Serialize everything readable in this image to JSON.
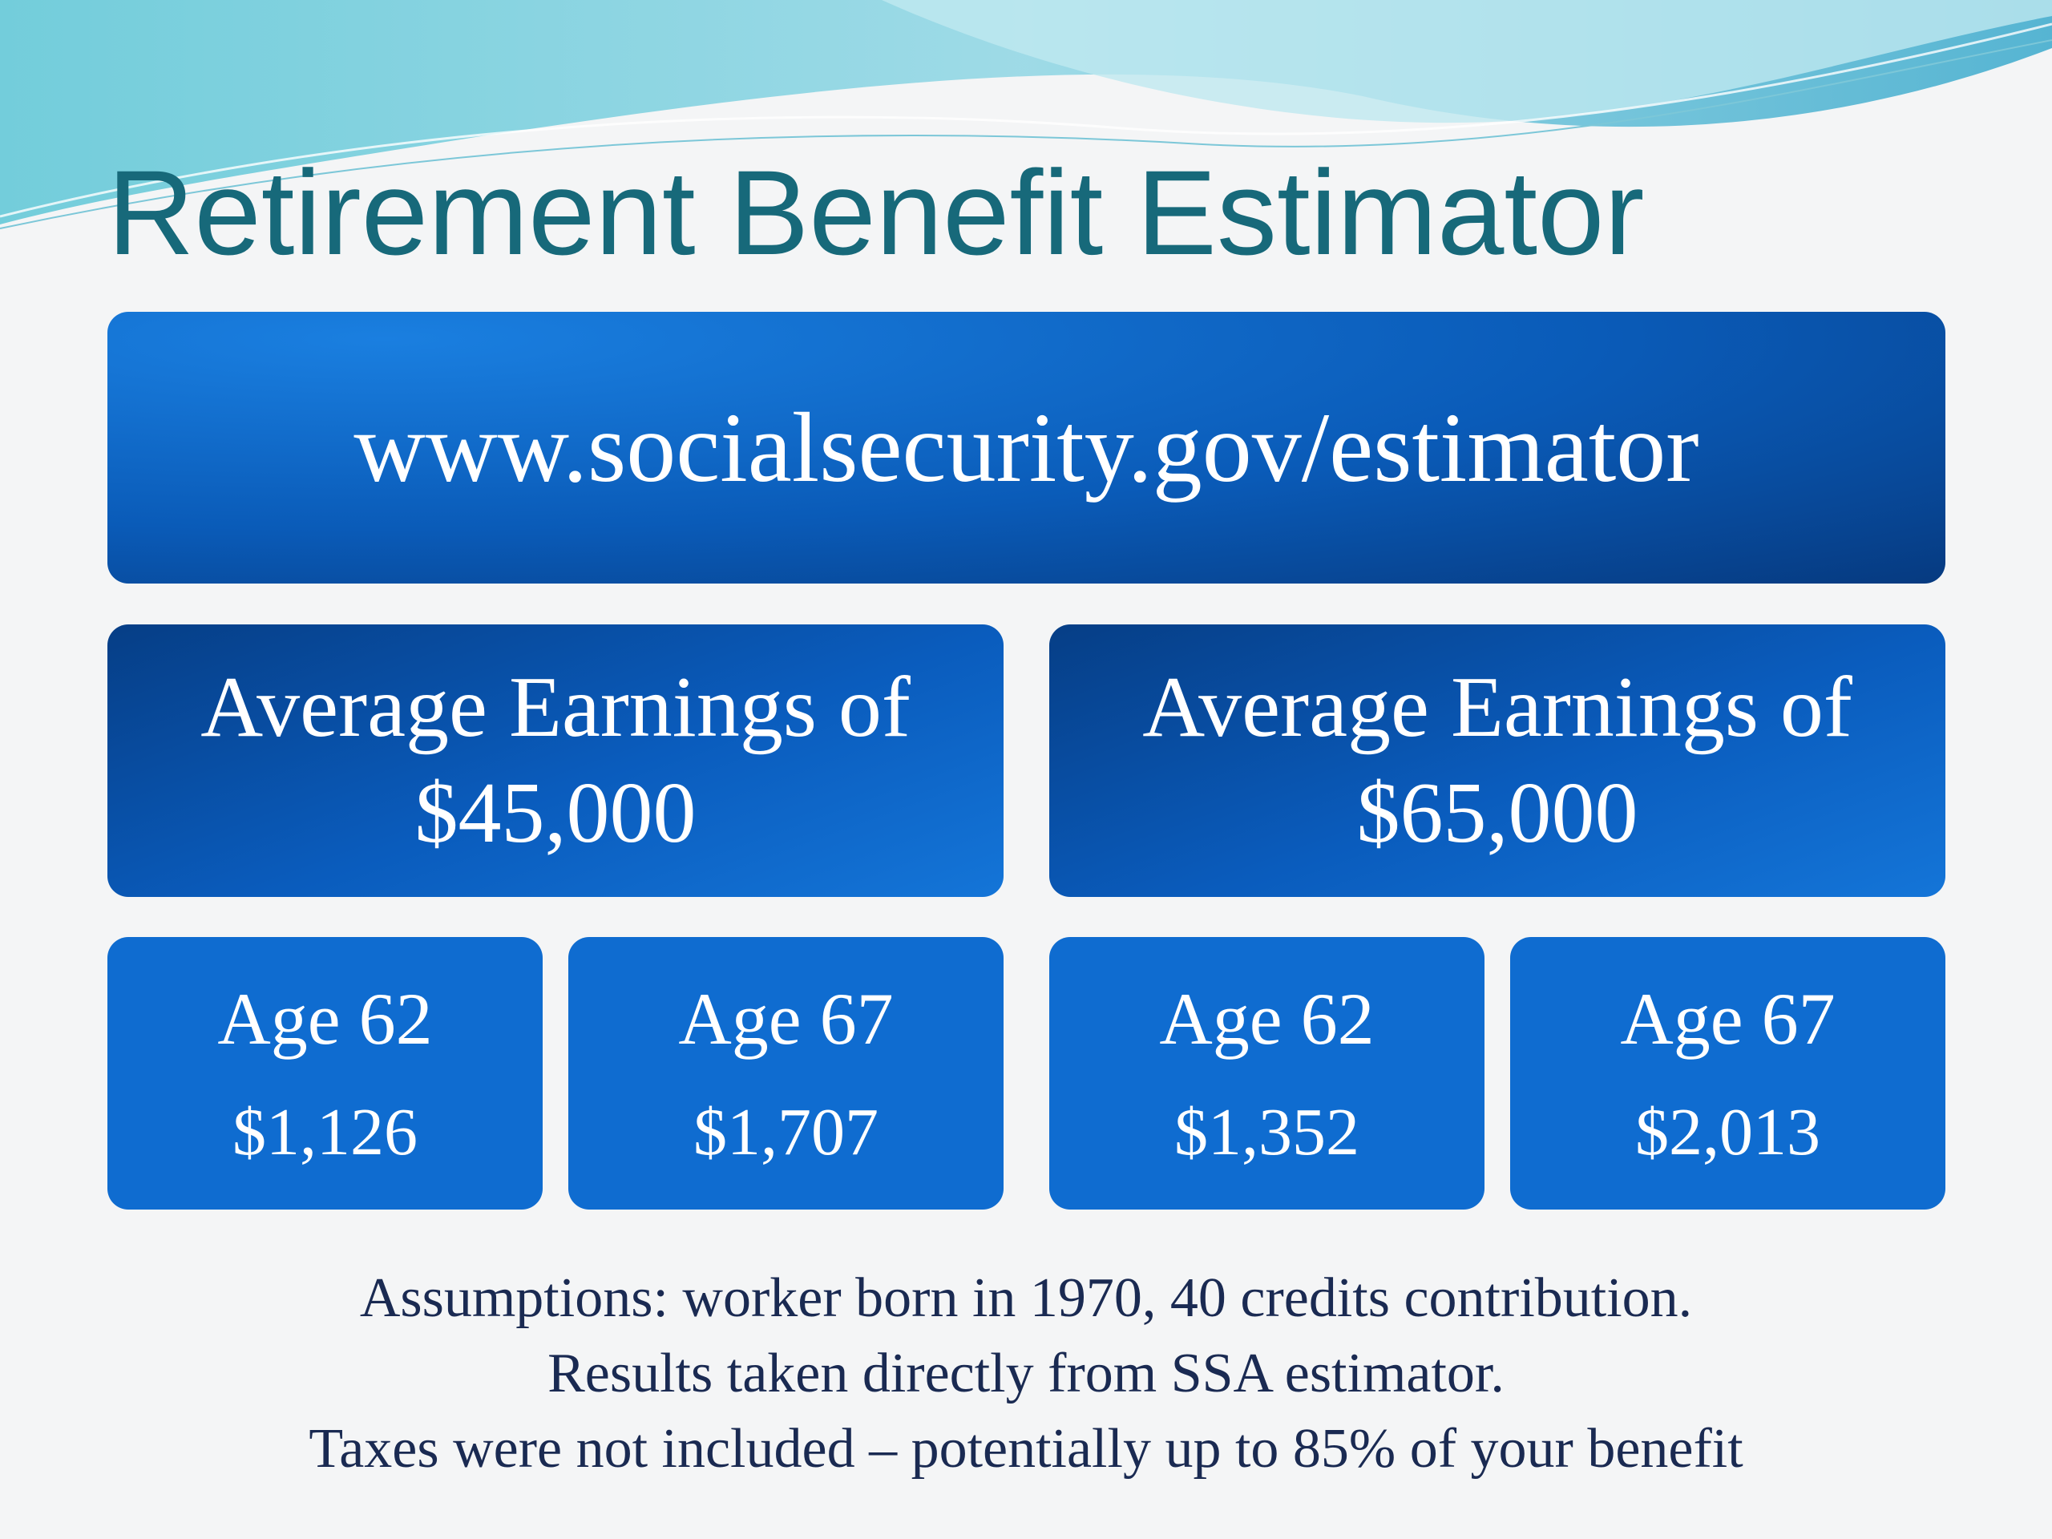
{
  "title": "Retirement Benefit Estimator",
  "url": "www.socialsecurity.gov/estimator",
  "groups": [
    {
      "heading": [
        "Average Earnings of",
        "$45,000"
      ],
      "boxes": [
        {
          "age": "Age 62",
          "amount": "$1,126"
        },
        {
          "age": "Age 67",
          "amount": "$1,707"
        }
      ]
    },
    {
      "heading": [
        "Average Earnings of",
        "$65,000"
      ],
      "boxes": [
        {
          "age": "Age 62",
          "amount": "$1,352"
        },
        {
          "age": "Age 67",
          "amount": "$2,013"
        }
      ]
    }
  ],
  "footnotes": [
    "Assumptions: worker born in 1970, 40 credits contribution.",
    "Results taken directly from SSA estimator.",
    "Taxes were not included – potentially up to 85% of your benefit"
  ]
}
